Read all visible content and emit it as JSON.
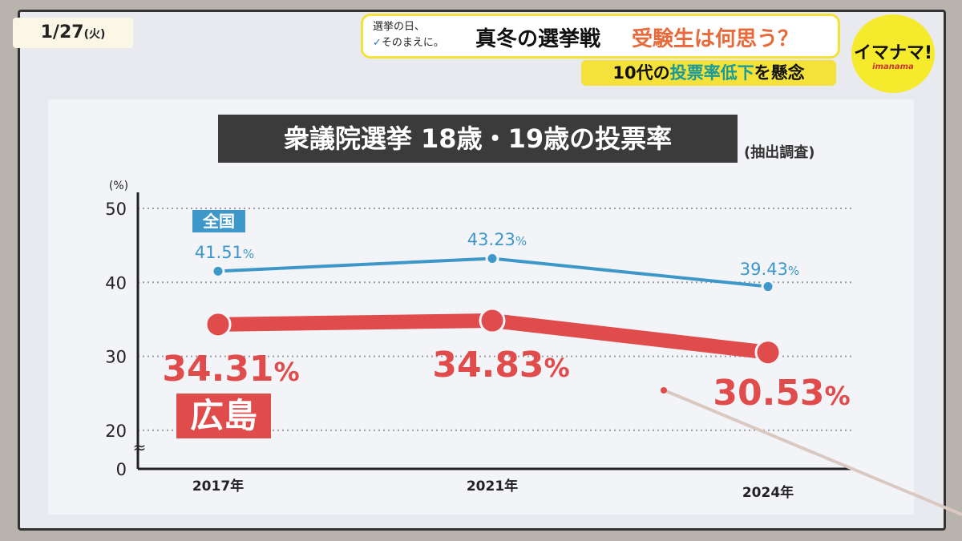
{
  "header": {
    "date": "1/27",
    "weekday": "(火)",
    "pre_line1": "選挙の日、",
    "pre_check": "✓",
    "pre_line2": "そのまえに。",
    "headline_main": "真冬の選挙戦",
    "headline_sub": "受験生は何思う？",
    "subtitle_a": "10代の",
    "subtitle_hl": "投票率低下",
    "subtitle_b": "を懸念",
    "logo_main": "イマナマ!",
    "logo_sub": "imanama"
  },
  "colors": {
    "national": "#3d98c9",
    "hiroshima": "#e04b4b",
    "accent_yellow": "#f4e23a"
  },
  "chart_data": {
    "type": "line",
    "title": "衆議院選挙 18歳・19歳の投票率",
    "note": "(抽出調査)",
    "ylabel": "(%)",
    "categories": [
      "2017年",
      "2021年",
      "2024年"
    ],
    "yticks": [
      "0",
      "20",
      "30",
      "40",
      "50"
    ],
    "ylim": [
      20,
      50
    ],
    "axis_break": true,
    "grid": "dotted horizontal",
    "series": [
      {
        "name": "全国",
        "values": [
          41.51,
          43.23,
          39.43
        ],
        "labels": [
          "41.51",
          "43.23",
          "39.43"
        ],
        "unit": "%"
      },
      {
        "name": "広島",
        "values": [
          34.31,
          34.83,
          30.53
        ],
        "labels": [
          "34.31",
          "34.83",
          "30.53"
        ],
        "unit": "%"
      }
    ]
  }
}
